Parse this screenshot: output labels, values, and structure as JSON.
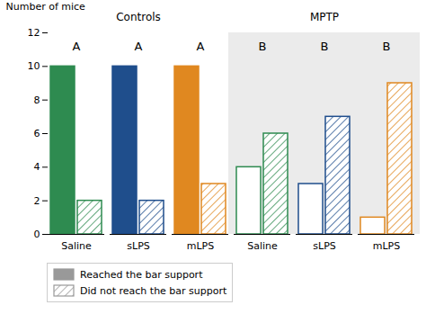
{
  "chart_data": {
    "type": "bar",
    "categories": [
      "Saline",
      "sLPS",
      "mLPS",
      "Saline",
      "sLPS",
      "mLPS"
    ],
    "series": [
      {
        "name": "Reached the bar support",
        "color": "#999999",
        "values": [
          10,
          10,
          10,
          4,
          3,
          1
        ]
      },
      {
        "name": "Did not reach the bar support",
        "color": "#999999",
        "values": [
          2,
          2,
          3,
          6,
          7,
          9
        ]
      }
    ],
    "colors": [
      "#2e8b50",
      "#1f4e8c",
      "#e08820",
      "#2e8b50",
      "#1f4e8c",
      "#e08820"
    ],
    "sections": [
      {
        "label": "Controls",
        "letter": "A",
        "categories": [
          "Saline",
          "sLPS",
          "mLPS"
        ]
      },
      {
        "label": "MPTP",
        "letter": "B",
        "categories": [
          "Saline",
          "sLPS",
          "mLPS"
        ],
        "color": "#ebebeb"
      }
    ],
    "ylabel": "Number of mice",
    "ylim": [
      0,
      12
    ],
    "yticks": [
      0,
      2,
      4,
      6,
      8,
      10,
      12
    ],
    "grid": false,
    "legend": "below"
  }
}
